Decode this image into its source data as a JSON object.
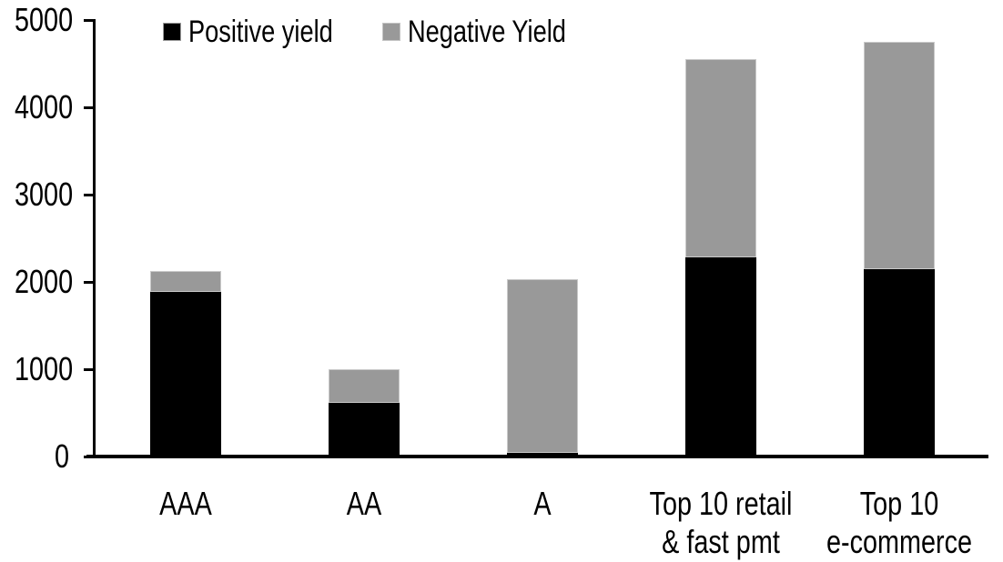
{
  "chart_data": {
    "type": "bar",
    "stacked": true,
    "title": "",
    "xlabel": "",
    "ylabel": "",
    "categories": [
      "AAA",
      "AA",
      "A",
      "Top 10 retail\n& fast pmt",
      "Top 10\ne-commerce"
    ],
    "series": [
      {
        "name": "Positive yield",
        "color": "#000000",
        "values": [
          1890,
          615,
          45,
          2280,
          2150
        ]
      },
      {
        "name": "Negative Yield",
        "color": "#999999",
        "values": [
          230,
          385,
          1985,
          2270,
          2600
        ]
      }
    ],
    "totals": [
      2120,
      1000,
      2030,
      4550,
      4750
    ],
    "ylim": [
      0,
      5000
    ],
    "yticks": [
      0,
      1000,
      2000,
      3000,
      4000,
      5000
    ],
    "grid": false,
    "legend_position": "top",
    "colors": {
      "positive": "#000000",
      "negative": "#999999",
      "axis": "#000000",
      "background": "#ffffff"
    }
  }
}
